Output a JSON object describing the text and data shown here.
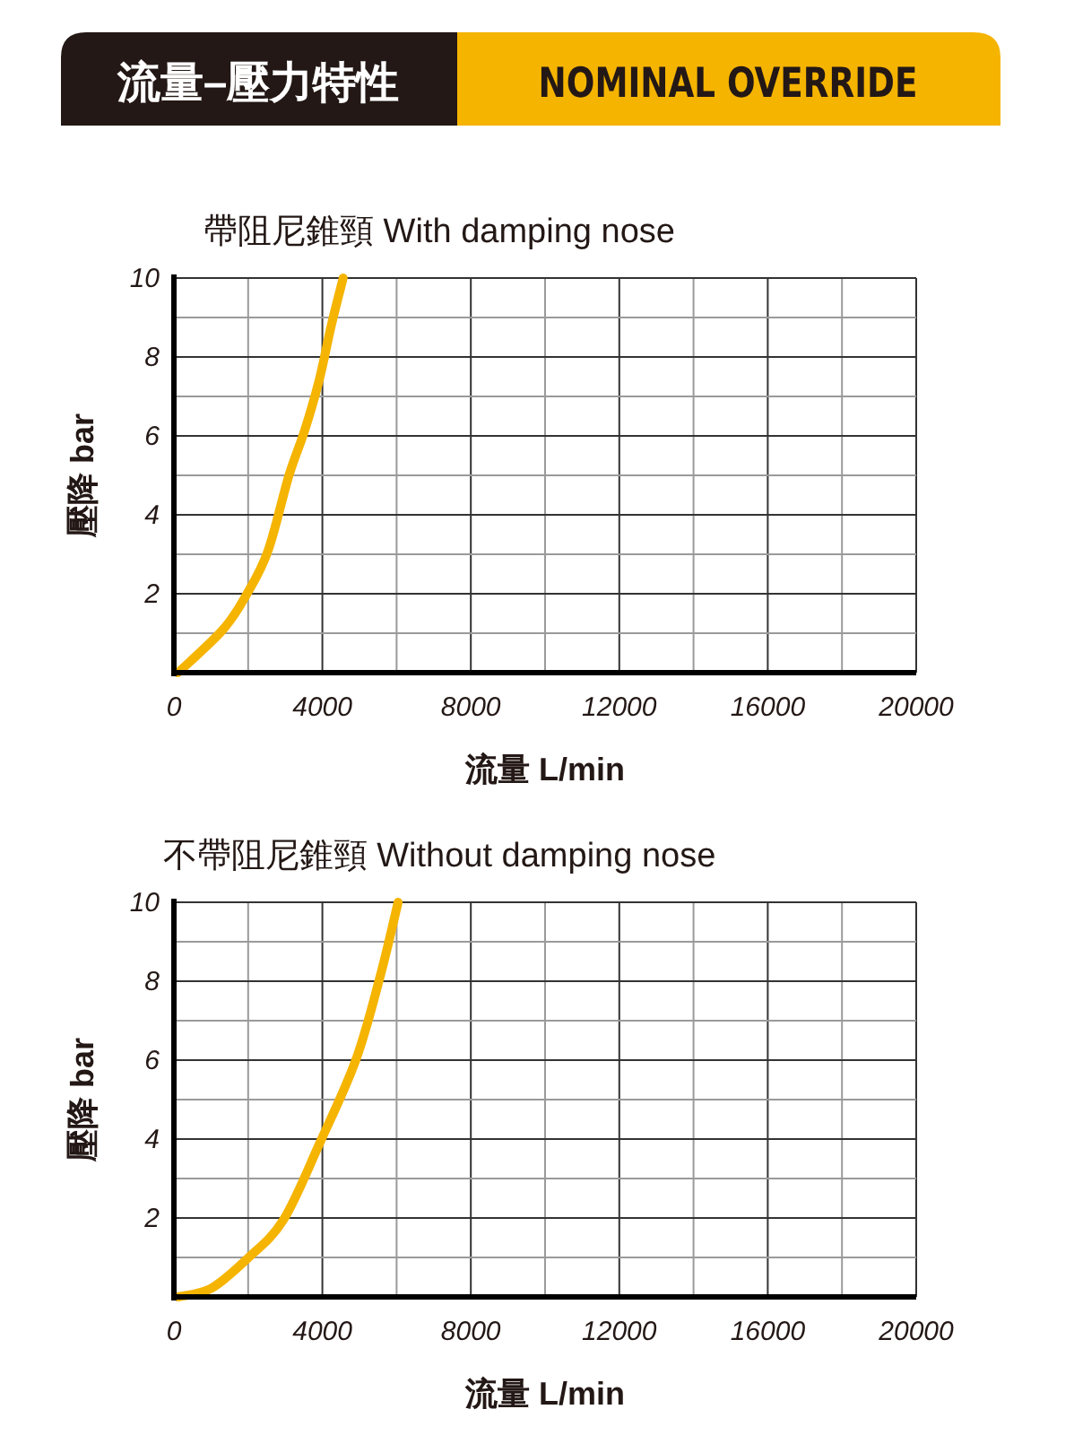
{
  "chart_data": [
    {
      "type": "other",
      "title": "流量–壓力特性",
      "subtitle": "NOMINAL OVERRIDE"
    },
    {
      "type": "line",
      "title": "帶阻尼錐頸  With damping nose",
      "xlabel": "流量 L/min",
      "ylabel": "壓降 bar",
      "xlim": [
        0,
        20000
      ],
      "ylim": [
        0,
        10
      ],
      "xticks": [
        0,
        {
          "value": 2000,
          "label": null
        },
        4000,
        {
          "value": 6000,
          "label": null
        },
        8000,
        {
          "value": 10000,
          "label": null
        },
        12000,
        {
          "value": 14000,
          "label": null
        },
        16000,
        {
          "value": 18000,
          "label": null
        },
        20000
      ],
      "yticks": [
        {
          "value": 1,
          "label": null
        },
        2,
        {
          "value": 3,
          "label": null
        },
        4,
        {
          "value": 5,
          "label": null
        },
        6,
        {
          "value": 7,
          "label": null
        },
        8,
        {
          "value": 9,
          "label": null
        },
        10
      ],
      "grid": true,
      "marker": "none",
      "line_style": "solid",
      "series": [
        {
          "color": "#f5b400",
          "x": [
            110,
            1330,
            1970,
            2540,
            3100,
            3510,
            3910,
            4240,
            4560
          ],
          "values": [
            0,
            1.1,
            2.0,
            3.1,
            5.0,
            6.1,
            7.4,
            8.8,
            10
          ]
        }
      ]
    },
    {
      "type": "line",
      "title": "不帶阻尼錐頸  Without damping nose",
      "xlabel": "流量 L/min",
      "ylabel": "壓降 bar",
      "xlim": [
        0,
        20000
      ],
      "ylim": [
        0,
        10
      ],
      "xticks": [
        0,
        {
          "value": 2000,
          "label": null
        },
        4000,
        {
          "value": 6000,
          "label": null
        },
        8000,
        {
          "value": 10000,
          "label": null
        },
        12000,
        {
          "value": 14000,
          "label": null
        },
        16000,
        {
          "value": 18000,
          "label": null
        },
        20000
      ],
      "yticks": [
        {
          "value": 1,
          "label": null
        },
        2,
        {
          "value": 3,
          "label": null
        },
        4,
        {
          "value": 5,
          "label": null
        },
        6,
        {
          "value": 7,
          "label": null
        },
        8,
        {
          "value": 9,
          "label": null
        },
        10
      ],
      "grid": true,
      "marker": "none",
      "line_style": "solid",
      "series": [
        {
          "color": "#f5b400",
          "x": [
            110,
            1010,
            1980,
            2950,
            3930,
            4900,
            5550,
            6040
          ],
          "values": [
            0,
            0.22,
            0.97,
            1.95,
            3.9,
            6.0,
            8.1,
            10
          ]
        }
      ]
    }
  ]
}
